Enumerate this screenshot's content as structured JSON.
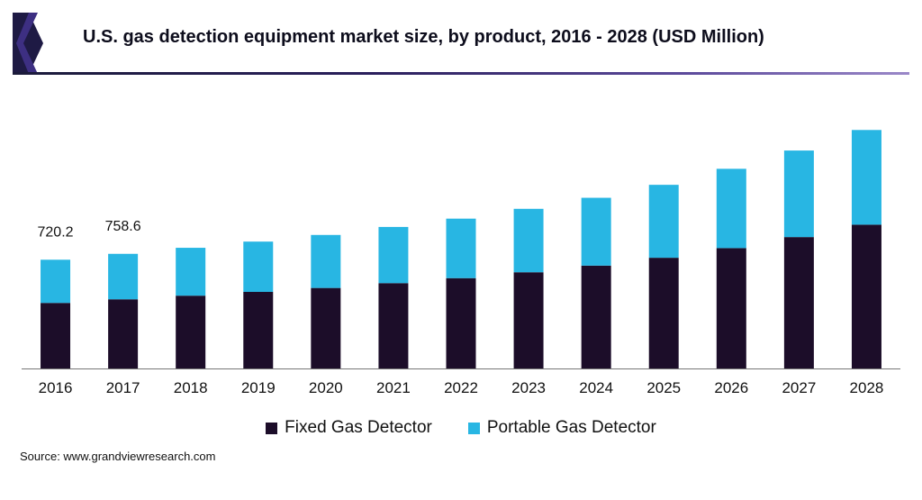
{
  "title": "U.S. gas detection equipment market size, by product, 2016 - 2028 (USD Million)",
  "source": "Source: www.grandviewresearch.com",
  "colors": {
    "fixed": "#1c0d29",
    "portable": "#28b6e3",
    "axis": "#777777",
    "logo_dark": "#1e1a44",
    "logo_accent": "#3d2f82"
  },
  "chart_data": {
    "type": "bar",
    "stacked": true,
    "categories": [
      "2016",
      "2017",
      "2018",
      "2019",
      "2020",
      "2021",
      "2022",
      "2023",
      "2024",
      "2025",
      "2026",
      "2027",
      "2028"
    ],
    "series": [
      {
        "name": "Fixed Gas Detector",
        "color": "#1c0d29",
        "values": [
          434,
          458,
          482,
          507,
          533,
          565,
          598,
          637,
          681,
          733,
          797,
          870,
          952
        ]
      },
      {
        "name": "Portable Gas Detector",
        "color": "#28b6e3",
        "values": [
          286,
          301,
          317,
          333,
          351,
          372,
          394,
          420,
          449,
          483,
          525,
          573,
          627
        ]
      }
    ],
    "data_labels": [
      "720.2",
      "758.6",
      "",
      "",
      "",
      "",
      "",
      "",
      "",
      "",
      "",
      "",
      ""
    ],
    "ylim": [
      0,
      1700
    ],
    "grid": false,
    "legend": "bottom"
  }
}
